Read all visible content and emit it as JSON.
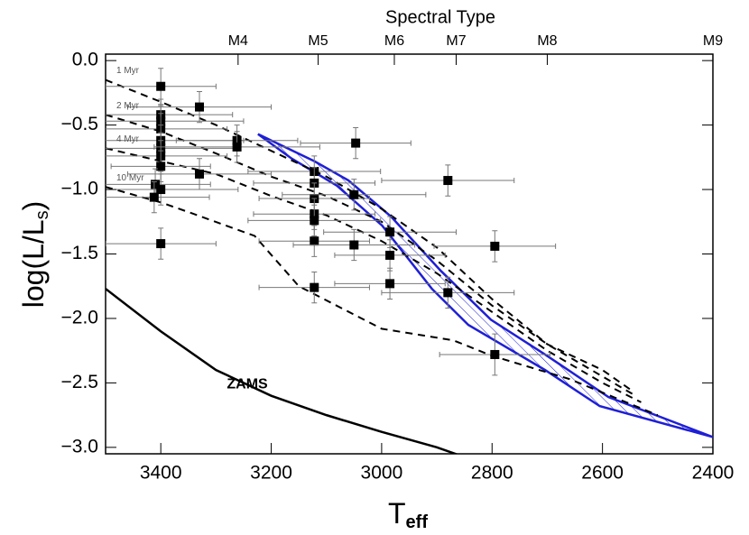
{
  "chart_data": {
    "type": "scatter",
    "xlabel": [
      "T",
      "eff"
    ],
    "ylabel": [
      "log(L/L",
      "s",
      ")"
    ],
    "xlim": [
      3500,
      2400
    ],
    "ylim": [
      -3.05,
      0.05
    ],
    "xticks": [
      3400,
      3200,
      3000,
      2800,
      2600,
      2400
    ],
    "yticks": [
      {
        "value": 0,
        "label": "0.0"
      },
      {
        "value": -0.5,
        "label": "−0.5"
      },
      {
        "value": -1,
        "label": "−1.0"
      },
      {
        "value": -1.5,
        "label": "−1.5"
      },
      {
        "value": -2,
        "label": "−2.0"
      },
      {
        "value": -2.5,
        "label": "−2.5"
      },
      {
        "value": -3,
        "label": "−3.0"
      }
    ],
    "top_axis": {
      "label": "Spectral Type",
      "ticks": [
        {
          "value": 3260,
          "label": "M4"
        },
        {
          "value": 3115,
          "label": "M5"
        },
        {
          "value": 2977,
          "label": "M6"
        },
        {
          "value": 2865,
          "label": "M7"
        },
        {
          "value": 2700,
          "label": "M8"
        },
        {
          "value": 2400,
          "label": "M9"
        }
      ]
    },
    "points": {
      "color": "#000000",
      "x": [
        3400,
        3330,
        3400,
        3400,
        3400,
        3400,
        3400,
        3400,
        3400,
        3262,
        3262,
        3047,
        3330,
        3410,
        3400,
        3412,
        3122,
        3122,
        3122,
        3122,
        3122,
        3122,
        3122,
        3050,
        3050,
        2985,
        2985,
        2985,
        2880,
        2880,
        2795,
        2795,
        3400
      ],
      "y": [
        -0.2,
        -0.36,
        -0.42,
        -0.47,
        -0.53,
        -0.62,
        -0.68,
        -0.74,
        -0.82,
        -0.62,
        -0.67,
        -0.64,
        -0.88,
        -0.96,
        -1.0,
        -1.06,
        -0.86,
        -0.95,
        -1.07,
        -1.19,
        -1.24,
        -1.4,
        -1.76,
        -1.04,
        -1.43,
        -1.33,
        -1.51,
        -1.73,
        -0.93,
        -1.8,
        -1.44,
        -2.28,
        -1.42
      ],
      "xerr": [
        100,
        130,
        130,
        150,
        120,
        150,
        140,
        120,
        90,
        110,
        150,
        100,
        130,
        100,
        140,
        100,
        120,
        110,
        100,
        110,
        120,
        100,
        100,
        130,
        110,
        120,
        100,
        100,
        120,
        120,
        110,
        100,
        100
      ],
      "yerr": [
        0.14,
        0.12,
        0.12,
        0.12,
        0.12,
        0.12,
        0.12,
        0.12,
        0.12,
        0.12,
        0.12,
        0.12,
        0.12,
        0.12,
        0.12,
        0.12,
        0.12,
        0.12,
        0.12,
        0.12,
        0.12,
        0.12,
        0.12,
        0.12,
        0.12,
        0.12,
        0.12,
        0.12,
        0.12,
        0.12,
        0.12,
        0.16,
        0.12
      ]
    },
    "isochrones": [
      {
        "label": "1 Myr",
        "x": [
          3500,
          3400,
          3300,
          3200,
          3100,
          3000,
          2900,
          2800,
          2700,
          2600,
          2550
        ],
        "y": [
          -0.15,
          -0.32,
          -0.5,
          -0.7,
          -0.9,
          -1.15,
          -1.45,
          -1.85,
          -2.2,
          -2.4,
          -2.55
        ]
      },
      {
        "label": "2 Myr",
        "x": [
          3500,
          3400,
          3300,
          3200,
          3100,
          3000,
          2900,
          2800,
          2700,
          2600,
          2540
        ],
        "y": [
          -0.42,
          -0.55,
          -0.72,
          -0.9,
          -1.05,
          -1.25,
          -1.55,
          -1.9,
          -2.2,
          -2.45,
          -2.6
        ]
      },
      {
        "label": "4 Myr",
        "x": [
          3500,
          3400,
          3300,
          3200,
          3100,
          3000,
          2900,
          2800,
          2700,
          2600,
          2530
        ],
        "y": [
          -0.68,
          -0.78,
          -0.88,
          -1.05,
          -1.2,
          -1.4,
          -1.65,
          -1.95,
          -2.25,
          -2.5,
          -2.65
        ]
      },
      {
        "label": "10 Myr",
        "x": [
          3500,
          3400,
          3340,
          3230,
          3150,
          3000,
          2870,
          2800,
          2660,
          2540,
          2500
        ],
        "y": [
          -0.98,
          -1.1,
          -1.19,
          -1.36,
          -1.75,
          -2.08,
          -2.17,
          -2.29,
          -2.47,
          -2.68,
          -2.75
        ]
      }
    ],
    "zams": {
      "label": "ZAMS",
      "x": [
        3500,
        3400,
        3300,
        3200,
        3100,
        3000,
        2900,
        2860
      ],
      "y": [
        -1.77,
        -2.1,
        -2.4,
        -2.6,
        -2.75,
        -2.88,
        -3.0,
        -3.06
      ]
    },
    "band": {
      "color": "#1f1fd6",
      "x_upper": [
        3224,
        3122,
        3060,
        2983,
        2893,
        2802,
        2704,
        2589,
        2400
      ],
      "y_upper": [
        -0.57,
        -0.78,
        -0.93,
        -1.21,
        -1.63,
        -2.01,
        -2.28,
        -2.61,
        -2.92
      ],
      "x_lower": [
        3224,
        3163,
        3081,
        2999,
        2909,
        2843,
        2704,
        2605,
        2400
      ],
      "y_lower": [
        -0.57,
        -0.76,
        -0.97,
        -1.28,
        -1.77,
        -2.05,
        -2.4,
        -2.68,
        -2.92
      ]
    }
  }
}
